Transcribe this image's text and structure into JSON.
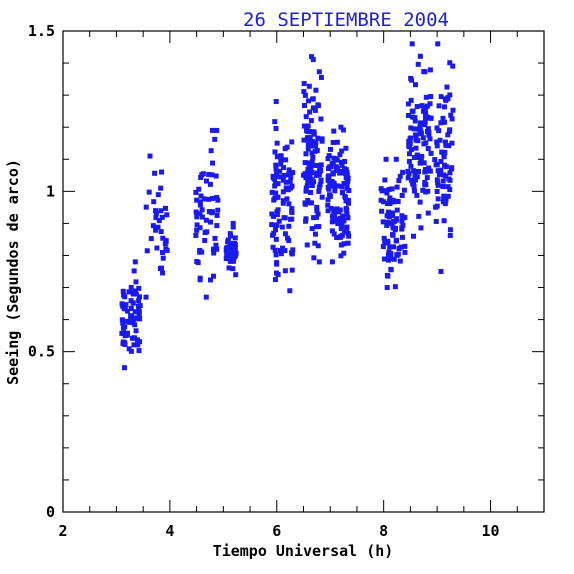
{
  "chart_data": {
    "type": "scatter",
    "title": "26 SEPTIEMBRE 2004",
    "xlabel": "Tiempo Universal (h)",
    "ylabel": "Seeing (Segundos de arco)",
    "xlim": [
      2,
      11
    ],
    "ylim": [
      0,
      1.5
    ],
    "x_ticks": [
      2,
      4,
      6,
      8,
      10
    ],
    "x_tick_labels": [
      "2",
      "4",
      "6",
      "8",
      "10"
    ],
    "x_minor_step": 0.5,
    "y_ticks": [
      0,
      0.5,
      1,
      1.5
    ],
    "y_tick_labels": [
      "0",
      "0.5",
      "1",
      "1.5"
    ],
    "y_minor_step": 0.1,
    "grid": false,
    "marker": "square",
    "colors": {
      "points": "#1a1af0",
      "title": "#1f1fd6",
      "axes": "#000000"
    },
    "clusters": [
      {
        "x_range": [
          3.1,
          3.45
        ],
        "y_min": 0.45,
        "y_max": 0.78,
        "n": 70
      },
      {
        "x_range": [
          3.55,
          3.95
        ],
        "y_min": 0.67,
        "y_max": 1.11,
        "n": 36
      },
      {
        "x_range": [
          4.45,
          4.9
        ],
        "y_min": 0.67,
        "y_max": 1.19,
        "n": 60
      },
      {
        "x_range": [
          5.05,
          5.25
        ],
        "y_min": 0.74,
        "y_max": 0.9,
        "n": 42
      },
      {
        "x_range": [
          5.9,
          6.3
        ],
        "y_min": 0.69,
        "y_max": 1.28,
        "n": 95
      },
      {
        "x_range": [
          6.5,
          6.85
        ],
        "y_min": 0.78,
        "y_max": 1.42,
        "n": 110
      },
      {
        "x_range": [
          6.95,
          7.35
        ],
        "y_min": 0.78,
        "y_max": 1.2,
        "n": 120
      },
      {
        "x_range": [
          7.95,
          8.4
        ],
        "y_min": 0.7,
        "y_max": 1.1,
        "n": 90
      },
      {
        "x_range": [
          8.45,
          8.9
        ],
        "y_min": 0.86,
        "y_max": 1.46,
        "n": 110
      },
      {
        "x_range": [
          8.95,
          9.3
        ],
        "y_min": 0.75,
        "y_max": 1.46,
        "n": 75
      }
    ]
  }
}
